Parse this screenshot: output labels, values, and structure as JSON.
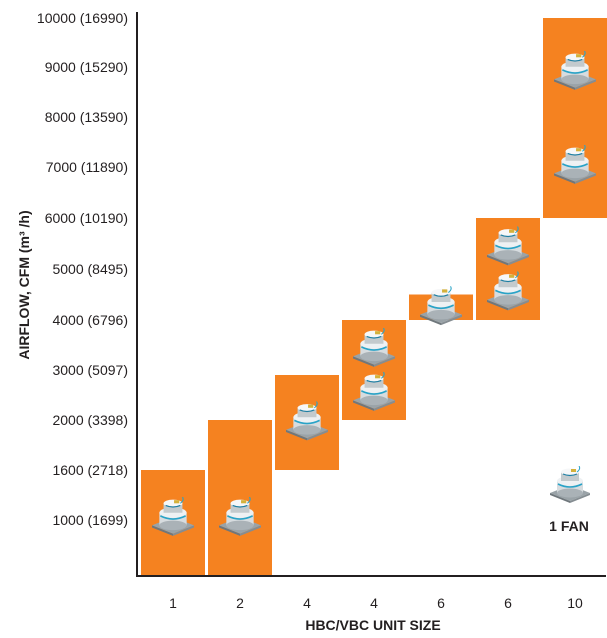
{
  "chart_data": {
    "type": "bar",
    "xlabel": "HBC/VBC UNIT SIZE",
    "ylabel": "AIRFLOW, CFM (m³ /h)",
    "y_ticks": [
      {
        "value": 1000,
        "label": "1000 (1699)"
      },
      {
        "value": 1600,
        "label": "1600 (2718)"
      },
      {
        "value": 2000,
        "label": "2000 (3398)"
      },
      {
        "value": 3000,
        "label": "3000 (5097)"
      },
      {
        "value": 4000,
        "label": "4000 (6796)"
      },
      {
        "value": 5000,
        "label": "5000 (8495)"
      },
      {
        "value": 6000,
        "label": "6000 (10190)"
      },
      {
        "value": 7000,
        "label": "7000 (11890)"
      },
      {
        "value": 8000,
        "label": "8000 (13590)"
      },
      {
        "value": 9000,
        "label": "9000 (15290)"
      },
      {
        "value": 10000,
        "label": "10000 (16990)"
      }
    ],
    "categories": [
      "1",
      "2",
      "4",
      "4",
      "6",
      "6",
      "10"
    ],
    "ranges": [
      {
        "category": "1",
        "min": 0,
        "max": 1600,
        "fans": 1
      },
      {
        "category": "2",
        "min": 0,
        "max": 2000,
        "fans": 1
      },
      {
        "category": "4",
        "min": 1600,
        "max": 2900,
        "fans": 1
      },
      {
        "category": "4",
        "min": 2000,
        "max": 4000,
        "fans": 2
      },
      {
        "category": "6",
        "min": 4000,
        "max": 4500,
        "fans": 1
      },
      {
        "category": "6",
        "min": 4000,
        "max": 6000,
        "fans": 2
      },
      {
        "category": "10",
        "min": 6000,
        "max": 10000,
        "fans": 2
      }
    ],
    "grid": false,
    "legend": {
      "label": "1 FAN",
      "position": "bottom-right"
    }
  },
  "colors": {
    "bar": "#f58220",
    "axis": "#231f20",
    "text": "#231f20"
  },
  "icon": "fan-unit-icon"
}
